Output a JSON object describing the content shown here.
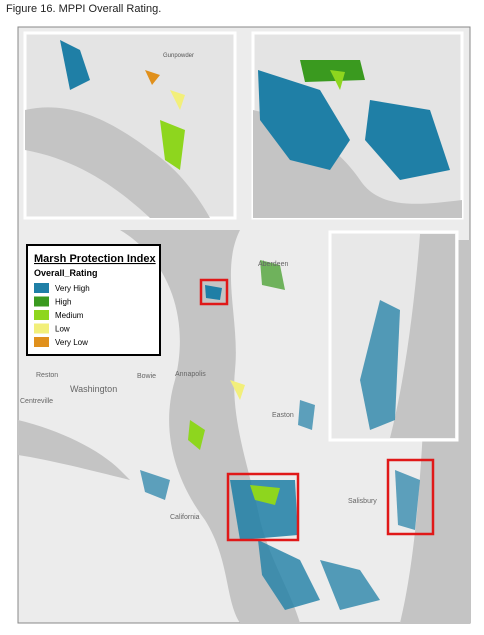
{
  "caption": "Figure 16. MPPI Overall Rating.",
  "legend": {
    "title": "Marsh Protection Index",
    "subtitle": "Overall_Rating",
    "items": [
      {
        "label": "Very High",
        "color": "#1f7fa6"
      },
      {
        "label": "High",
        "color": "#3a9a1f"
      },
      {
        "label": "Medium",
        "color": "#8ed61e"
      },
      {
        "label": "Low",
        "color": "#f2ef7a"
      },
      {
        "label": "Very Low",
        "color": "#e0901c"
      }
    ]
  },
  "places": [
    "Aberdeen",
    "Annapolis",
    "Washington",
    "Bowie",
    "Reston",
    "Easton",
    "California",
    "Salisbury",
    "Gunpowder",
    "Centreville"
  ]
}
